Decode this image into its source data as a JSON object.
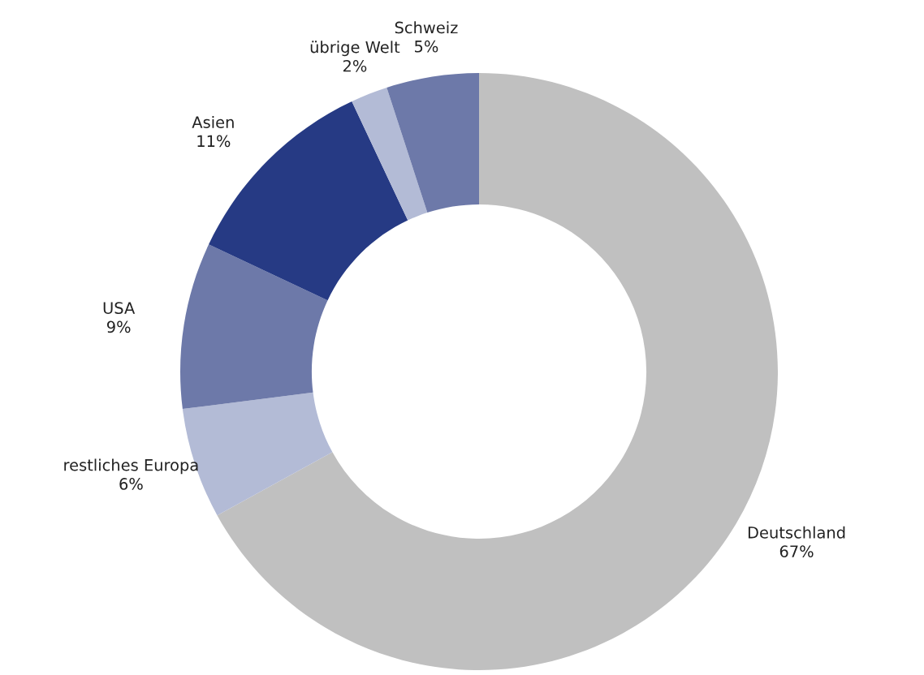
{
  "chart_data": {
    "type": "donut",
    "categories": [
      "Deutschland",
      "restliches Europa",
      "USA",
      "Asien",
      "übrige Welt",
      "Schweiz"
    ],
    "values": [
      67,
      6,
      9,
      11,
      2,
      5
    ],
    "colors": [
      "#c0c0c0",
      "#b3bbd6",
      "#6d79a9",
      "#263a84",
      "#b3bbd6",
      "#6d79a9"
    ],
    "value_labels": [
      "67%",
      "6%",
      "9%",
      "11%",
      "2%",
      "5%"
    ],
    "legend": false
  }
}
